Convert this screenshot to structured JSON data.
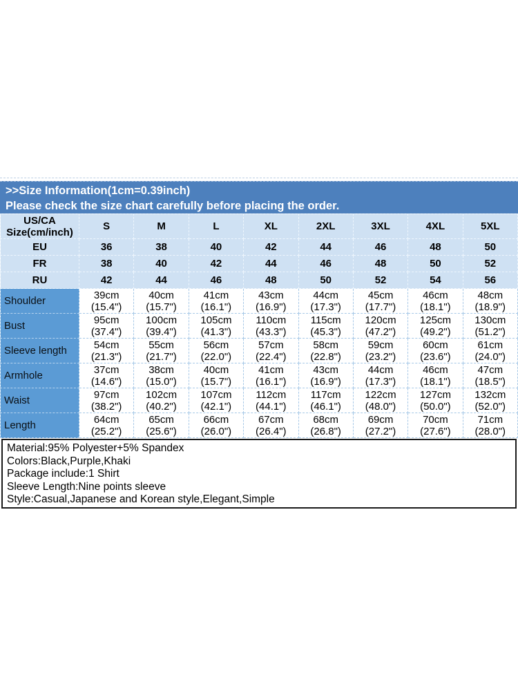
{
  "banner": {
    "line1": ">>Size Information(1cm=0.39inch)",
    "line2": "Please check the size chart carefully before placing the order."
  },
  "table": {
    "corner_header": [
      "US/CA",
      "Size(cm/inch)"
    ],
    "sizes": [
      "S",
      "M",
      "L",
      "XL",
      "2XL",
      "3XL",
      "4XL",
      "5XL"
    ],
    "region_rows": [
      {
        "label": "EU",
        "values": [
          "36",
          "38",
          "40",
          "42",
          "44",
          "46",
          "48",
          "50"
        ]
      },
      {
        "label": "FR",
        "values": [
          "38",
          "40",
          "42",
          "44",
          "46",
          "48",
          "50",
          "52"
        ]
      },
      {
        "label": "RU",
        "values": [
          "42",
          "44",
          "46",
          "48",
          "50",
          "52",
          "54",
          "56"
        ]
      }
    ],
    "measurement_rows": [
      {
        "label": "Shoulder",
        "values": [
          {
            "cm": "39cm",
            "in": "(15.4\")"
          },
          {
            "cm": "40cm",
            "in": "(15.7\")"
          },
          {
            "cm": "41cm",
            "in": "(16.1\")"
          },
          {
            "cm": "43cm",
            "in": "(16.9\")"
          },
          {
            "cm": "44cm",
            "in": "(17.3\")"
          },
          {
            "cm": "45cm",
            "in": "(17.7\")"
          },
          {
            "cm": "46cm",
            "in": "(18.1\")"
          },
          {
            "cm": "48cm",
            "in": "(18.9\")"
          }
        ]
      },
      {
        "label": "Bust",
        "values": [
          {
            "cm": "95cm",
            "in": "(37.4\")"
          },
          {
            "cm": "100cm",
            "in": "(39.4\")"
          },
          {
            "cm": "105cm",
            "in": "(41.3\")"
          },
          {
            "cm": "110cm",
            "in": "(43.3\")"
          },
          {
            "cm": "115cm",
            "in": "(45.3\")"
          },
          {
            "cm": "120cm",
            "in": "(47.2\")"
          },
          {
            "cm": "125cm",
            "in": "(49.2\")"
          },
          {
            "cm": "130cm",
            "in": "(51.2\")"
          }
        ]
      },
      {
        "label": "Sleeve length",
        "values": [
          {
            "cm": "54cm",
            "in": "(21.3\")"
          },
          {
            "cm": "55cm",
            "in": "(21.7\")"
          },
          {
            "cm": "56cm",
            "in": "(22.0\")"
          },
          {
            "cm": "57cm",
            "in": "(22.4\")"
          },
          {
            "cm": "58cm",
            "in": "(22.8\")"
          },
          {
            "cm": "59cm",
            "in": "(23.2\")"
          },
          {
            "cm": "60cm",
            "in": "(23.6\")"
          },
          {
            "cm": "61cm",
            "in": "(24.0\")"
          }
        ]
      },
      {
        "label": "Armhole",
        "values": [
          {
            "cm": "37cm",
            "in": "(14.6\")"
          },
          {
            "cm": "38cm",
            "in": "(15.0\")"
          },
          {
            "cm": "40cm",
            "in": "(15.7\")"
          },
          {
            "cm": "41cm",
            "in": "(16.1\")"
          },
          {
            "cm": "43cm",
            "in": "(16.9\")"
          },
          {
            "cm": "44cm",
            "in": "(17.3\")"
          },
          {
            "cm": "46cm",
            "in": "(18.1\")"
          },
          {
            "cm": "47cm",
            "in": "(18.5\")"
          }
        ]
      },
      {
        "label": "Waist",
        "values": [
          {
            "cm": "97cm",
            "in": "(38.2\")"
          },
          {
            "cm": "102cm",
            "in": "(40.2\")"
          },
          {
            "cm": "107cm",
            "in": "(42.1\")"
          },
          {
            "cm": "112cm",
            "in": "(44.1\")"
          },
          {
            "cm": "117cm",
            "in": "(46.1\")"
          },
          {
            "cm": "122cm",
            "in": "(48.0\")"
          },
          {
            "cm": "127cm",
            "in": "(50.0\")"
          },
          {
            "cm": "132cm",
            "in": "(52.0\")"
          }
        ]
      },
      {
        "label": "Length",
        "values": [
          {
            "cm": "64cm",
            "in": "(25.2\")"
          },
          {
            "cm": "65cm",
            "in": "(25.6\")"
          },
          {
            "cm": "66cm",
            "in": "(26.0\")"
          },
          {
            "cm": "67cm",
            "in": "(26.4\")"
          },
          {
            "cm": "68cm",
            "in": "(26.8\")"
          },
          {
            "cm": "69cm",
            "in": "(27.2\")"
          },
          {
            "cm": "70cm",
            "in": "(27.6\")"
          },
          {
            "cm": "71cm",
            "in": "(28.0\")"
          }
        ]
      }
    ]
  },
  "details": {
    "lines": [
      "Material:95% Polyester+5% Spandex",
      "Colors:Black,Purple,Khaki",
      "Package include:1 Shirt",
      "Sleeve Length:Nine points sleeve",
      "Style:Casual,Japanese and Korean style,Elegant,Simple"
    ]
  },
  "colors": {
    "banner_bg": "#4d80bd",
    "header_cell_bg": "#cfe1f3",
    "label_cell_bg": "#5b9bd5",
    "details_border": "#1a1a1a",
    "banner_text": "#ffffff",
    "table_text": "#000000"
  }
}
